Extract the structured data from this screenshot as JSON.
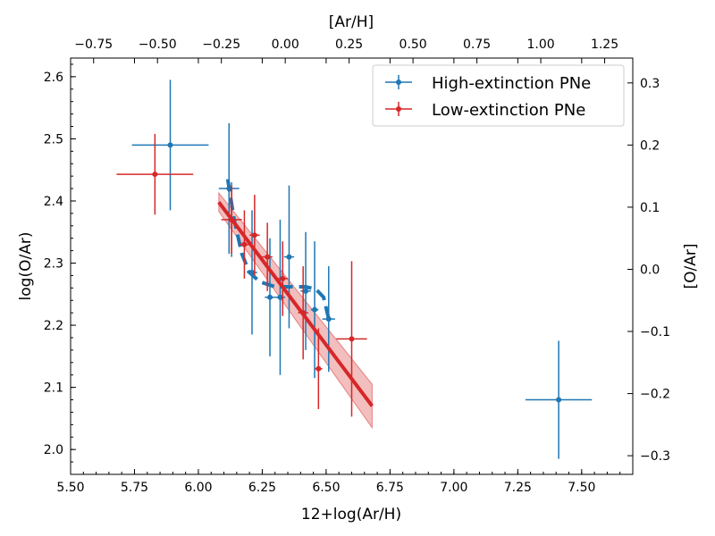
{
  "chart_data": {
    "type": "scatter",
    "xlabel": "12+log(Ar/H)",
    "ylabel": "log(O/Ar)",
    "top_xlabel": "[Ar/H]",
    "right_ylabel": "[O/Ar]",
    "xlim": [
      5.5,
      7.7
    ],
    "ylim": [
      1.96,
      2.63
    ],
    "x_ticks": [
      5.5,
      5.75,
      6.0,
      6.25,
      6.5,
      6.75,
      7.0,
      7.25,
      7.5
    ],
    "x_tick_labels": [
      "5.50",
      "5.75",
      "6.00",
      "6.25",
      "6.50",
      "6.75",
      "7.00",
      "7.25",
      "7.50"
    ],
    "y_ticks": [
      2.0,
      2.1,
      2.2,
      2.3,
      2.4,
      2.5,
      2.6
    ],
    "y_tick_labels": [
      "2.0",
      "2.1",
      "2.2",
      "2.3",
      "2.4",
      "2.5",
      "2.6"
    ],
    "top_x_ticks": [
      -0.75,
      -0.5,
      -0.25,
      0.0,
      0.25,
      0.5,
      0.75,
      1.0,
      1.25
    ],
    "top_x_tick_labels": [
      "−0.75",
      "−0.50",
      "−0.25",
      "0.00",
      "0.25",
      "0.50",
      "0.75",
      "1.00",
      "1.25"
    ],
    "top_x_offset": 6.34,
    "right_y_ticks": [
      -0.3,
      -0.2,
      -0.1,
      0.0,
      0.1,
      0.2,
      0.3
    ],
    "right_y_tick_labels": [
      "−0.3",
      "−0.2",
      "−0.1",
      "0.0",
      "0.1",
      "0.2",
      "0.3"
    ],
    "right_y_offset": 2.29,
    "legend_position": "top-right",
    "series": [
      {
        "name": "High-extinction PNe",
        "color": "#1f77b4",
        "points": [
          {
            "x": 5.89,
            "y": 2.49,
            "xerr": 0.15,
            "yerr": 0.105
          },
          {
            "x": 6.12,
            "y": 2.42,
            "xerr": 0.04,
            "yerr": 0.105
          },
          {
            "x": 6.13,
            "y": 2.37,
            "xerr": 0.02,
            "yerr": 0.06
          },
          {
            "x": 6.21,
            "y": 2.285,
            "xerr": 0.02,
            "yerr": 0.1
          },
          {
            "x": 6.28,
            "y": 2.245,
            "xerr": 0.02,
            "yerr": 0.095
          },
          {
            "x": 6.32,
            "y": 2.245,
            "xerr": 0.02,
            "yerr": 0.125
          },
          {
            "x": 6.355,
            "y": 2.31,
            "xerr": 0.02,
            "yerr": 0.115
          },
          {
            "x": 6.42,
            "y": 2.255,
            "xerr": 0.02,
            "yerr": 0.095
          },
          {
            "x": 6.455,
            "y": 2.225,
            "xerr": 0.015,
            "yerr": 0.11
          },
          {
            "x": 6.51,
            "y": 2.21,
            "xerr": 0.025,
            "yerr": 0.085
          },
          {
            "x": 7.41,
            "y": 2.08,
            "xerr": 0.13,
            "yerr": 0.095
          }
        ]
      },
      {
        "name": "Low-extinction PNe",
        "color": "#d62728",
        "points": [
          {
            "x": 5.83,
            "y": 2.443,
            "xerr": 0.15,
            "yerr": 0.065
          },
          {
            "x": 6.13,
            "y": 2.37,
            "xerr": 0.04,
            "yerr": 0.055
          },
          {
            "x": 6.18,
            "y": 2.33,
            "xerr": 0.02,
            "yerr": 0.055
          },
          {
            "x": 6.22,
            "y": 2.345,
            "xerr": 0.02,
            "yerr": 0.065
          },
          {
            "x": 6.27,
            "y": 2.31,
            "xerr": 0.02,
            "yerr": 0.055
          },
          {
            "x": 6.33,
            "y": 2.275,
            "xerr": 0.02,
            "yerr": 0.06
          },
          {
            "x": 6.41,
            "y": 2.22,
            "xerr": 0.02,
            "yerr": 0.075
          },
          {
            "x": 6.47,
            "y": 2.13,
            "xerr": 0.015,
            "yerr": 0.065
          },
          {
            "x": 6.6,
            "y": 2.178,
            "xerr": 0.06,
            "yerr": 0.125
          }
        ]
      }
    ],
    "fit_line": {
      "color": "#d62728",
      "x": [
        6.08,
        6.68
      ],
      "y": [
        2.398,
        2.07
      ],
      "band_lower": [
        2.383,
        2.035
      ],
      "band_upper": [
        2.413,
        2.105
      ]
    },
    "dashed_curve": {
      "color": "#1f77b4",
      "x": [
        6.115,
        6.14,
        6.17,
        6.2,
        6.24,
        6.3,
        6.36,
        6.42,
        6.46,
        6.49,
        6.51
      ],
      "y": [
        2.435,
        2.37,
        2.315,
        2.285,
        2.27,
        2.262,
        2.262,
        2.262,
        2.258,
        2.245,
        2.21
      ]
    }
  }
}
